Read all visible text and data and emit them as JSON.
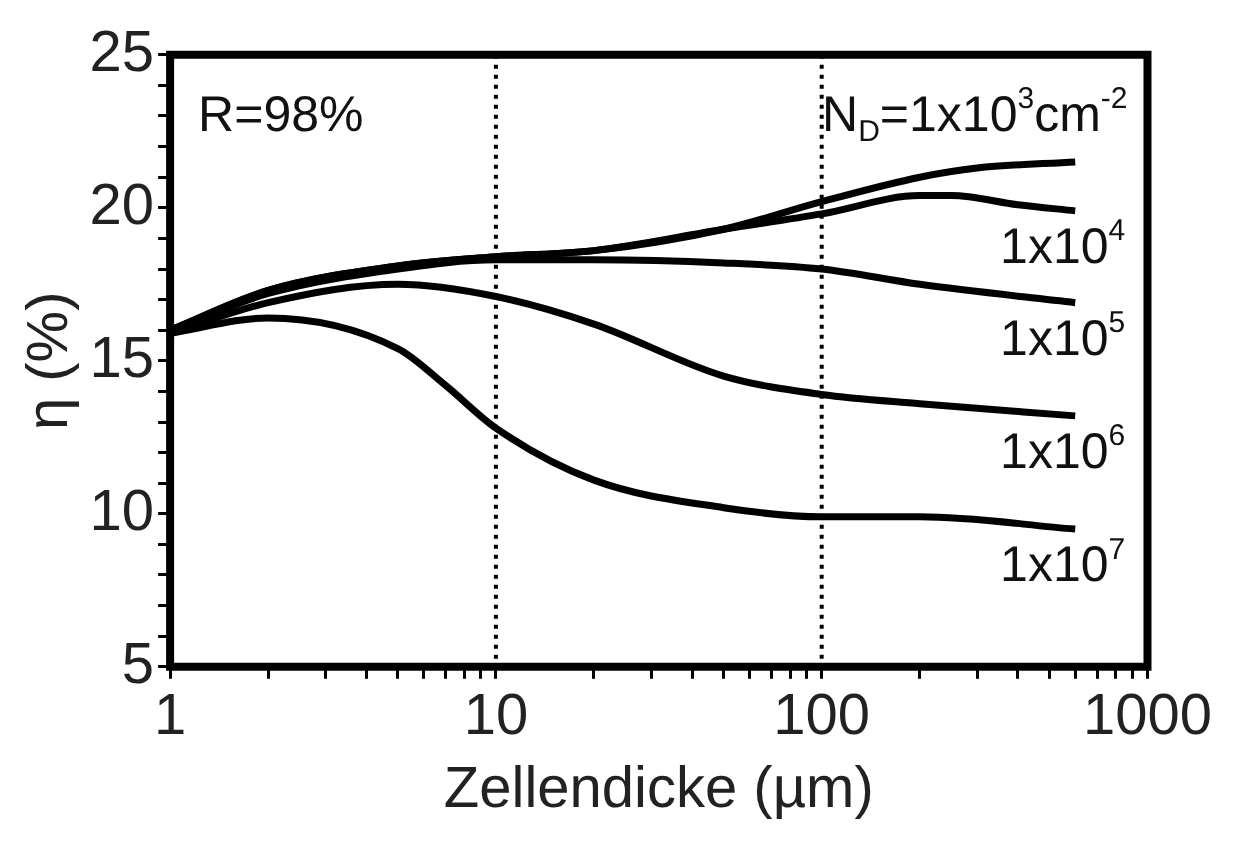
{
  "chart_data": {
    "type": "line",
    "xlabel": "Zellendicke (µm)",
    "ylabel": "η (%)",
    "log": "x",
    "grid": false,
    "legend": false,
    "marker": "none",
    "line_style": "solid",
    "xlim": [
      1,
      1000
    ],
    "xticks": [
      1,
      {
        "value": 2,
        "label": null
      },
      {
        "value": 3,
        "label": null
      },
      {
        "value": 4,
        "label": null
      },
      {
        "value": 5,
        "label": null
      },
      {
        "value": 6,
        "label": null
      },
      {
        "value": 7,
        "label": null
      },
      {
        "value": 8,
        "label": null
      },
      {
        "value": 9,
        "label": null
      },
      10,
      {
        "value": 20,
        "label": null
      },
      {
        "value": 30,
        "label": null
      },
      {
        "value": 40,
        "label": null
      },
      {
        "value": 50,
        "label": null
      },
      {
        "value": 60,
        "label": null
      },
      {
        "value": 70,
        "label": null
      },
      {
        "value": 80,
        "label": null
      },
      {
        "value": 90,
        "label": null
      },
      100,
      {
        "value": 200,
        "label": null
      },
      {
        "value": 300,
        "label": null
      },
      {
        "value": 400,
        "label": null
      },
      {
        "value": 500,
        "label": null
      },
      {
        "value": 600,
        "label": null
      },
      {
        "value": 700,
        "label": null
      },
      {
        "value": 800,
        "label": null
      },
      {
        "value": 900,
        "label": null
      },
      1000
    ],
    "ylim": [
      5,
      25
    ],
    "yticks": [
      5,
      {
        "value": 6,
        "label": null
      },
      {
        "value": 7,
        "label": null
      },
      {
        "value": 8,
        "label": null
      },
      {
        "value": 9,
        "label": null
      },
      10,
      {
        "value": 11,
        "label": null
      },
      {
        "value": 12,
        "label": null
      },
      {
        "value": 13,
        "label": null
      },
      {
        "value": 14,
        "label": null
      },
      15,
      {
        "value": 16,
        "label": null
      },
      {
        "value": 17,
        "label": null
      },
      {
        "value": 18,
        "label": null
      },
      {
        "value": 19,
        "label": null
      },
      20,
      {
        "value": 21,
        "label": null
      },
      {
        "value": 22,
        "label": null
      },
      {
        "value": 23,
        "label": null
      },
      {
        "value": 24,
        "label": null
      },
      25
    ],
    "x": [
      1,
      2,
      5,
      10,
      20,
      50,
      100,
      200,
      300,
      600
    ],
    "series": [
      {
        "name": "N$_{D}$=1x10$^{3}$cm$^{-2}$",
        "color": "#000000",
        "values": [
          16,
          17.3,
          18.1,
          18.4,
          18.6,
          19.3,
          20.2,
          21.0,
          21.3,
          21.5
        ]
      },
      {
        "name": "1x10$^{4}$",
        "color": "#000000",
        "x": [
          1,
          2,
          5,
          10,
          20,
          50,
          100,
          200,
          250,
          400,
          600
        ],
        "values": [
          16,
          17.3,
          18.1,
          18.4,
          18.6,
          19.3,
          19.8,
          20.4,
          20.4,
          20.1,
          19.9
        ]
      },
      {
        "name": "1x10$^{5}$",
        "color": "#000000",
        "x": [
          1,
          2,
          5,
          10,
          20,
          50,
          100,
          200,
          600
        ],
        "values": [
          16,
          17.2,
          18.0,
          18.3,
          18.3,
          18.2,
          18.0,
          17.5,
          16.9
        ]
      },
      {
        "name": "1x10$^{6}$",
        "color": "#000000",
        "x": [
          1,
          2,
          5,
          10,
          20,
          50,
          100,
          200,
          600
        ],
        "values": [
          15.9,
          16.9,
          17.5,
          17.1,
          16.2,
          14.5,
          13.9,
          13.6,
          13.2
        ]
      },
      {
        "name": "1x10$^{7}$",
        "color": "#000000",
        "x": [
          1,
          2,
          5,
          7,
          10,
          20,
          50,
          100,
          200,
          600
        ],
        "values": [
          15.9,
          16.4,
          15.4,
          14.2,
          12.8,
          11.1,
          10.2,
          9.9,
          9.9,
          9.5
        ]
      }
    ],
    "ref_lines": [
      {
        "axis": "x",
        "value": 10,
        "line_style": "dotted",
        "color": "#000000"
      },
      {
        "axis": "x",
        "value": 100,
        "line_style": "dotted",
        "color": "#000000"
      }
    ],
    "annotations": [
      "R=98%"
    ]
  }
}
